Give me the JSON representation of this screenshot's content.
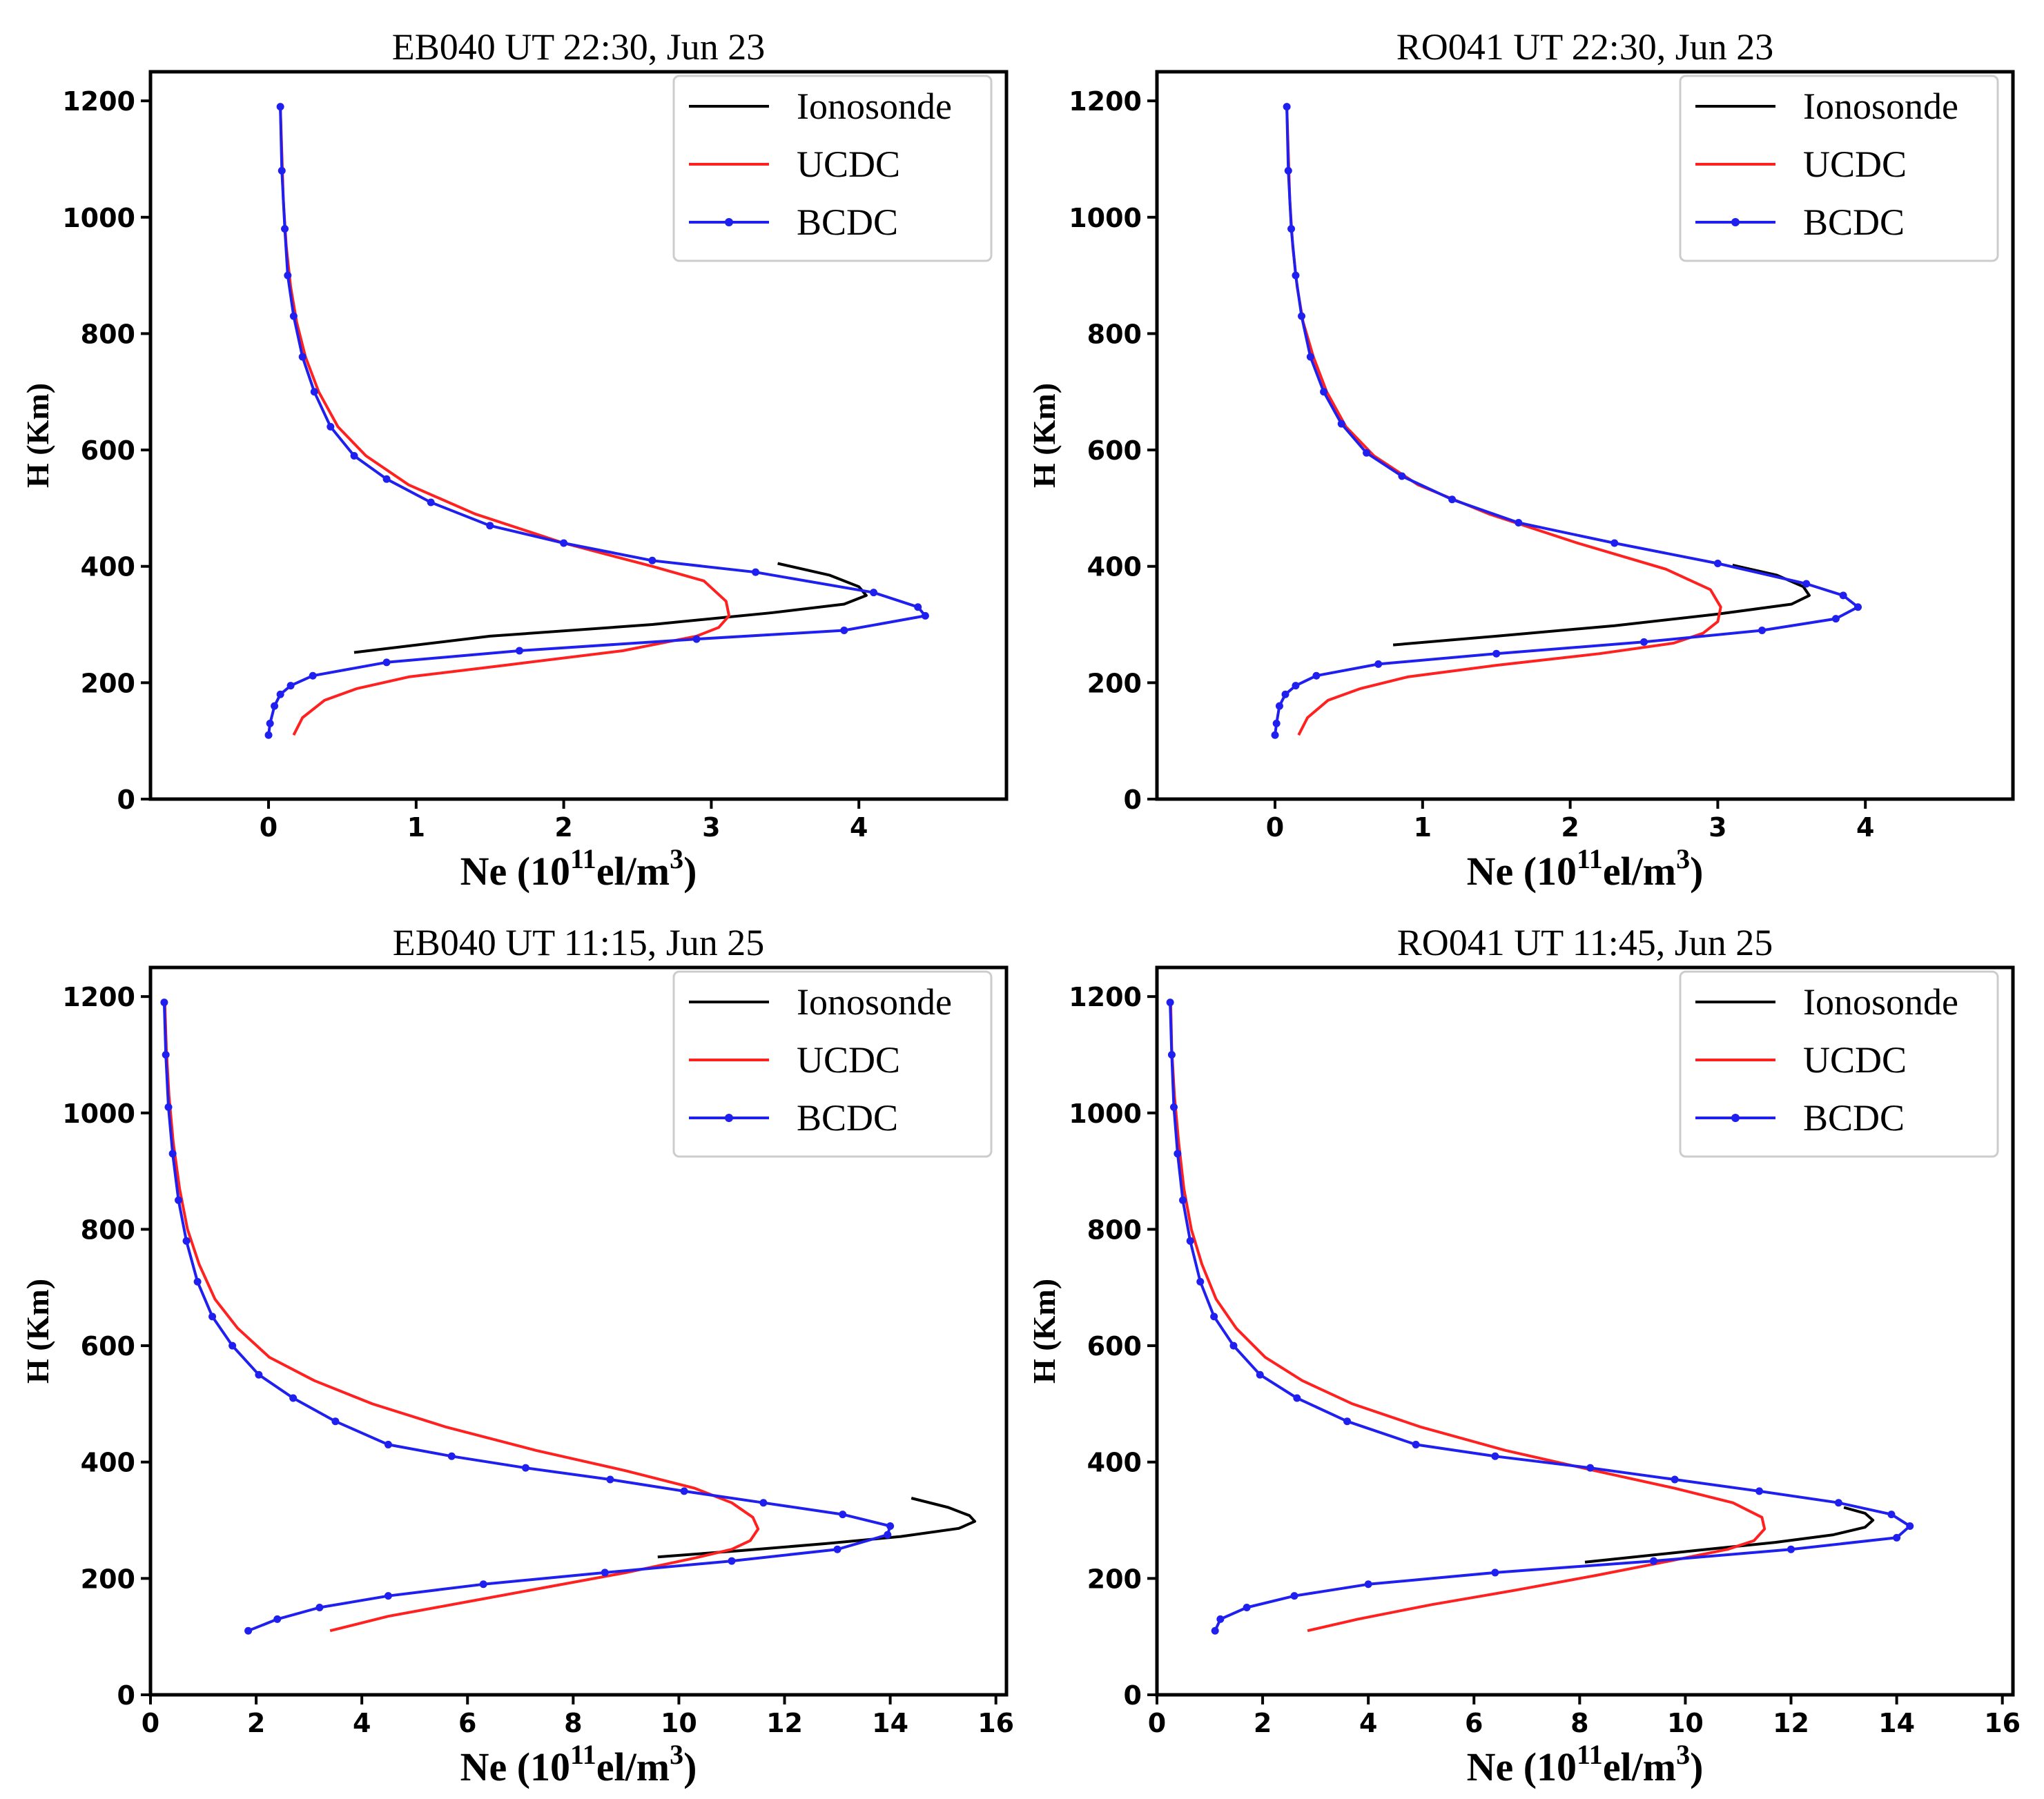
{
  "figure": {
    "series_names": [
      "Ionosonde",
      "UCDC",
      "BCDC"
    ],
    "colors": {
      "Ionosonde": "#000000",
      "UCDC": "#ff2020",
      "BCDC": "#1f1fef"
    },
    "legend_location": "top-right"
  },
  "chart_data": [
    {
      "type": "line",
      "title": "EB040  UT  22:30, Jun 23",
      "xlabel": {
        "base": "Ne (10",
        "sup1": "11",
        "mid": "el/m",
        "sup2": "3",
        "end": ")"
      },
      "ylabel": "H (Km)",
      "xlim": [
        -0.8,
        5.0
      ],
      "ylim": [
        0,
        1250
      ],
      "xticks": [
        0,
        1,
        2,
        3,
        4
      ],
      "xtick_labels": [
        "0",
        "1",
        "2",
        "3",
        "4"
      ],
      "yticks": [
        0,
        200,
        400,
        600,
        800,
        1000,
        1200
      ],
      "ytick_labels": [
        "0",
        "200",
        "400",
        "600",
        "800",
        "1000",
        "1200"
      ],
      "legend": [
        "Ionosonde",
        "UCDC",
        "BCDC"
      ],
      "series": [
        {
          "name": "Ionosonde",
          "x": [
            3.45,
            3.8,
            4.0,
            4.05,
            3.9,
            3.4,
            2.6,
            1.5,
            0.58
          ],
          "y": [
            405,
            385,
            365,
            350,
            335,
            320,
            300,
            280,
            252
          ]
        },
        {
          "name": "UCDC",
          "x": [
            0.17,
            0.23,
            0.38,
            0.6,
            0.95,
            1.6,
            2.4,
            2.9,
            3.05,
            3.12,
            3.1,
            2.95,
            2.6,
            2.0,
            1.4,
            0.95,
            0.66,
            0.47,
            0.34,
            0.25,
            0.19,
            0.15,
            0.12,
            0.1,
            0.09,
            0.08
          ],
          "y": [
            110,
            140,
            170,
            190,
            210,
            230,
            255,
            280,
            295,
            315,
            340,
            375,
            400,
            440,
            490,
            540,
            590,
            640,
            700,
            760,
            820,
            880,
            950,
            1030,
            1110,
            1190
          ]
        },
        {
          "name": "BCDC",
          "x": [
            0.0,
            0.01,
            0.04,
            0.08,
            0.15,
            0.3,
            0.8,
            1.7,
            2.9,
            3.9,
            4.45,
            4.4,
            4.1,
            3.3,
            2.6,
            2.0,
            1.5,
            1.1,
            0.8,
            0.58,
            0.42,
            0.31,
            0.23,
            0.17,
            0.13,
            0.11,
            0.09,
            0.08
          ],
          "y": [
            110,
            130,
            160,
            180,
            195,
            212,
            235,
            255,
            275,
            290,
            315,
            330,
            355,
            390,
            410,
            440,
            470,
            510,
            550,
            590,
            640,
            700,
            760,
            830,
            900,
            980,
            1080,
            1190
          ]
        }
      ]
    },
    {
      "type": "line",
      "title": "RO041  UT  22:30, Jun 23",
      "xlabel": {
        "base": "Ne (10",
        "sup1": "11",
        "mid": "el/m",
        "sup2": "3",
        "end": ")"
      },
      "ylabel": "H (Km)",
      "xlim": [
        -0.8,
        5.0
      ],
      "ylim": [
        0,
        1250
      ],
      "xticks": [
        0,
        1,
        2,
        3,
        4
      ],
      "xtick_labels": [
        "0",
        "1",
        "2",
        "3",
        "4"
      ],
      "yticks": [
        0,
        200,
        400,
        600,
        800,
        1000,
        1200
      ],
      "ytick_labels": [
        "0",
        "200",
        "400",
        "600",
        "800",
        "1000",
        "1200"
      ],
      "legend": [
        "Ionosonde",
        "UCDC",
        "BCDC"
      ],
      "series": [
        {
          "name": "Ionosonde",
          "x": [
            3.1,
            3.4,
            3.58,
            3.62,
            3.5,
            3.0,
            2.3,
            1.5,
            0.8
          ],
          "y": [
            402,
            385,
            365,
            350,
            335,
            318,
            298,
            280,
            265
          ]
        },
        {
          "name": "UCDC",
          "x": [
            0.16,
            0.22,
            0.36,
            0.58,
            0.9,
            1.5,
            2.2,
            2.7,
            2.9,
            3.0,
            3.02,
            2.95,
            2.65,
            2.05,
            1.45,
            0.97,
            0.67,
            0.48,
            0.35,
            0.26,
            0.19,
            0.15,
            0.12,
            0.1,
            0.09,
            0.08
          ],
          "y": [
            110,
            140,
            170,
            190,
            210,
            230,
            250,
            268,
            285,
            305,
            330,
            360,
            395,
            440,
            490,
            540,
            590,
            640,
            700,
            760,
            820,
            880,
            950,
            1030,
            1110,
            1190
          ]
        },
        {
          "name": "BCDC",
          "x": [
            0.0,
            0.01,
            0.03,
            0.07,
            0.14,
            0.28,
            0.7,
            1.5,
            2.5,
            3.3,
            3.8,
            3.95,
            3.85,
            3.6,
            3.0,
            2.3,
            1.65,
            1.2,
            0.86,
            0.62,
            0.45,
            0.33,
            0.24,
            0.18,
            0.14,
            0.11,
            0.09,
            0.08
          ],
          "y": [
            110,
            130,
            160,
            180,
            195,
            212,
            232,
            250,
            270,
            290,
            310,
            330,
            350,
            370,
            405,
            440,
            475,
            515,
            555,
            595,
            645,
            700,
            760,
            830,
            900,
            980,
            1080,
            1190
          ]
        }
      ]
    },
    {
      "type": "line",
      "title": "EB040  UT  11:15, Jun 25",
      "xlabel": {
        "base": "Ne (10",
        "sup1": "11",
        "mid": "el/m",
        "sup2": "3",
        "end": ")"
      },
      "ylabel": "H (Km)",
      "xlim": [
        0,
        16.2
      ],
      "ylim": [
        0,
        1250
      ],
      "xticks": [
        0,
        2,
        4,
        6,
        8,
        10,
        12,
        14,
        16
      ],
      "xtick_labels": [
        "0",
        "2",
        "4",
        "6",
        "8",
        "10",
        "12",
        "14",
        "16"
      ],
      "yticks": [
        0,
        200,
        400,
        600,
        800,
        1000,
        1200
      ],
      "ytick_labels": [
        "0",
        "200",
        "400",
        "600",
        "800",
        "1000",
        "1200"
      ],
      "legend": [
        "Ionosonde",
        "UCDC",
        "BCDC"
      ],
      "series": [
        {
          "name": "Ionosonde",
          "x": [
            14.4,
            15.1,
            15.5,
            15.6,
            15.3,
            14.2,
            12.8,
            11.2,
            9.6
          ],
          "y": [
            338,
            322,
            308,
            298,
            286,
            272,
            260,
            248,
            237
          ]
        },
        {
          "name": "UCDC",
          "x": [
            3.4,
            4.5,
            6.0,
            7.5,
            9.0,
            10.3,
            11.0,
            11.35,
            11.5,
            11.4,
            11.0,
            10.3,
            9.0,
            7.3,
            5.6,
            4.2,
            3.1,
            2.25,
            1.65,
            1.22,
            0.92,
            0.7,
            0.55,
            0.43,
            0.35,
            0.3,
            0.27
          ],
          "y": [
            110,
            135,
            160,
            185,
            210,
            235,
            250,
            265,
            285,
            305,
            330,
            355,
            385,
            420,
            460,
            500,
            540,
            580,
            630,
            680,
            740,
            800,
            870,
            950,
            1030,
            1110,
            1190
          ]
        },
        {
          "name": "BCDC",
          "x": [
            1.85,
            2.4,
            3.2,
            4.5,
            6.3,
            8.6,
            11.0,
            13.0,
            13.95,
            14.0,
            13.1,
            11.6,
            10.1,
            8.7,
            7.1,
            5.7,
            4.5,
            3.5,
            2.7,
            2.05,
            1.55,
            1.17,
            0.89,
            0.68,
            0.53,
            0.42,
            0.34,
            0.29,
            0.26
          ],
          "y": [
            110,
            130,
            150,
            170,
            190,
            210,
            230,
            250,
            275,
            290,
            310,
            330,
            350,
            370,
            390,
            410,
            430,
            470,
            510,
            550,
            600,
            650,
            710,
            780,
            850,
            930,
            1010,
            1100,
            1190
          ]
        }
      ]
    },
    {
      "type": "line",
      "title": "RO041  UT  11:45, Jun 25",
      "xlabel": {
        "base": "Ne (10",
        "sup1": "11",
        "mid": "el/m",
        "sup2": "3",
        "end": ")"
      },
      "ylabel": "H (Km)",
      "xlim": [
        0,
        16.2
      ],
      "ylim": [
        0,
        1250
      ],
      "xticks": [
        0,
        2,
        4,
        6,
        8,
        10,
        12,
        14,
        16
      ],
      "xtick_labels": [
        "0",
        "2",
        "4",
        "6",
        "8",
        "10",
        "12",
        "14",
        "16"
      ],
      "yticks": [
        0,
        200,
        400,
        600,
        800,
        1000,
        1200
      ],
      "ytick_labels": [
        "0",
        "200",
        "400",
        "600",
        "800",
        "1000",
        "1200"
      ],
      "legend": [
        "Ionosonde",
        "UCDC",
        "BCDC"
      ],
      "series": [
        {
          "name": "Ionosonde",
          "x": [
            13.0,
            13.4,
            13.55,
            13.4,
            12.8,
            11.7,
            10.2,
            8.1
          ],
          "y": [
            322,
            312,
            300,
            288,
            275,
            262,
            248,
            228
          ]
        },
        {
          "name": "UCDC",
          "x": [
            2.85,
            3.8,
            5.2,
            6.8,
            8.3,
            9.7,
            10.8,
            11.3,
            11.5,
            11.45,
            10.9,
            9.8,
            8.3,
            6.6,
            5.0,
            3.7,
            2.75,
            2.05,
            1.5,
            1.12,
            0.85,
            0.65,
            0.51,
            0.41,
            0.33,
            0.28,
            0.26
          ],
          "y": [
            110,
            130,
            155,
            180,
            205,
            230,
            250,
            265,
            285,
            305,
            330,
            355,
            385,
            420,
            460,
            500,
            540,
            580,
            630,
            680,
            740,
            800,
            870,
            950,
            1030,
            1110,
            1190
          ]
        },
        {
          "name": "BCDC",
          "x": [
            1.1,
            1.2,
            1.7,
            2.6,
            4.0,
            6.4,
            9.4,
            12.0,
            14.0,
            14.25,
            13.9,
            12.9,
            11.4,
            9.8,
            8.2,
            6.4,
            4.9,
            3.6,
            2.65,
            1.95,
            1.45,
            1.08,
            0.82,
            0.63,
            0.49,
            0.39,
            0.32,
            0.28,
            0.25
          ],
          "y": [
            110,
            130,
            150,
            170,
            190,
            210,
            230,
            250,
            270,
            290,
            310,
            330,
            350,
            370,
            390,
            410,
            430,
            470,
            510,
            550,
            600,
            650,
            710,
            780,
            850,
            930,
            1010,
            1100,
            1190
          ]
        }
      ]
    }
  ]
}
